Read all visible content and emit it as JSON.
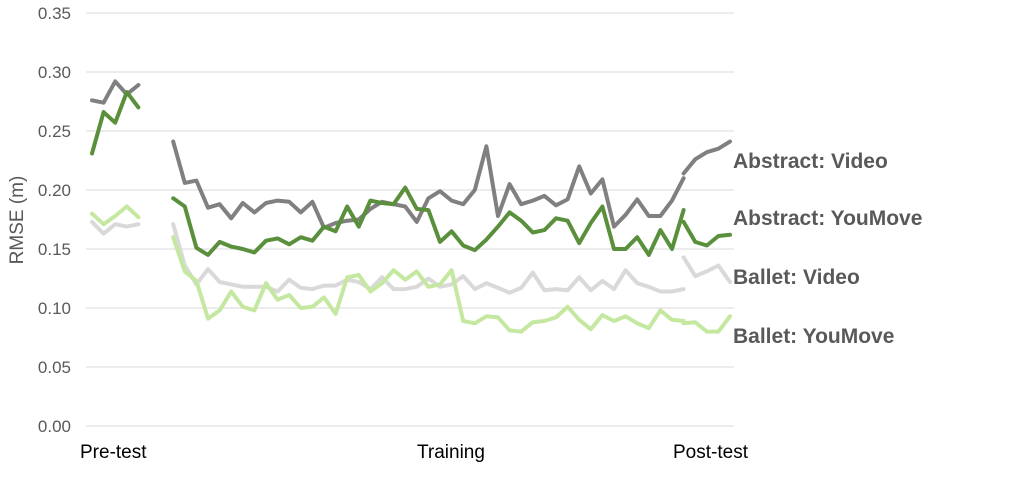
{
  "chart_data": {
    "type": "line",
    "title": "",
    "ylabel": "RMSE (m)",
    "xlabel": "",
    "ylim": [
      0,
      0.35
    ],
    "yticks": [
      "0.00",
      "0.05",
      "0.10",
      "0.15",
      "0.20",
      "0.25",
      "0.30",
      "0.35"
    ],
    "grid": true,
    "x_phase_labels": [
      "Pre-test",
      "Training",
      "Post-test"
    ],
    "phases": [
      {
        "name": "Pre-test",
        "start": 0,
        "count": 5
      },
      {
        "name": "Training",
        "start": 7,
        "count": 43
      },
      {
        "name": "Post-test",
        "start": 51,
        "count": 5
      }
    ],
    "series": [
      {
        "name": "Abstract: Video",
        "color": "#808080",
        "pre": [
          0.276,
          0.274,
          0.292,
          0.281,
          0.289
        ],
        "training": [
          0.241,
          0.206,
          0.208,
          0.185,
          0.188,
          0.176,
          0.189,
          0.181,
          0.189,
          0.191,
          0.19,
          0.181,
          0.19,
          0.168,
          0.172,
          0.174,
          0.175,
          0.184,
          0.19,
          0.188,
          0.186,
          0.173,
          0.193,
          0.199,
          0.191,
          0.188,
          0.2,
          0.237,
          0.178,
          0.205,
          0.188,
          0.191,
          0.195,
          0.187,
          0.192,
          0.22,
          0.197,
          0.209,
          0.169,
          0.179,
          0.192,
          0.178,
          0.178,
          0.191,
          0.21
        ],
        "post": [
          0.214,
          0.226,
          0.232,
          0.235,
          0.241
        ]
      },
      {
        "name": "Abstract: YouMove",
        "color": "#5a8f3c",
        "pre": [
          0.231,
          0.266,
          0.257,
          0.283,
          0.27
        ],
        "training": [
          0.193,
          0.186,
          0.151,
          0.145,
          0.156,
          0.152,
          0.15,
          0.147,
          0.157,
          0.159,
          0.154,
          0.16,
          0.157,
          0.169,
          0.165,
          0.186,
          0.169,
          0.191,
          0.189,
          0.188,
          0.202,
          0.184,
          0.183,
          0.156,
          0.165,
          0.153,
          0.149,
          0.158,
          0.169,
          0.181,
          0.174,
          0.164,
          0.166,
          0.176,
          0.174,
          0.155,
          0.172,
          0.186,
          0.15,
          0.15,
          0.16,
          0.145,
          0.166,
          0.15,
          0.183
        ],
        "post": [
          0.173,
          0.156,
          0.153,
          0.161,
          0.162
        ]
      },
      {
        "name": "Ballet: Video",
        "color": "#d9d9d9",
        "pre": [
          0.173,
          0.163,
          0.171,
          0.169,
          0.171
        ],
        "training": [
          0.171,
          0.136,
          0.12,
          0.133,
          0.122,
          0.12,
          0.118,
          0.118,
          0.118,
          0.114,
          0.124,
          0.117,
          0.116,
          0.119,
          0.119,
          0.124,
          0.122,
          0.116,
          0.126,
          0.116,
          0.116,
          0.118,
          0.125,
          0.118,
          0.12,
          0.127,
          0.116,
          0.121,
          0.117,
          0.113,
          0.117,
          0.13,
          0.115,
          0.116,
          0.115,
          0.126,
          0.115,
          0.123,
          0.116,
          0.132,
          0.121,
          0.118,
          0.114,
          0.114,
          0.116
        ],
        "post": [
          0.143,
          0.127,
          0.131,
          0.136,
          0.122
        ]
      },
      {
        "name": "Ballet: YouMove",
        "color": "#c5e8a0",
        "pre": [
          0.18,
          0.171,
          0.178,
          0.186,
          0.177
        ],
        "training": [
          0.16,
          0.131,
          0.123,
          0.091,
          0.098,
          0.114,
          0.101,
          0.098,
          0.121,
          0.107,
          0.111,
          0.1,
          0.101,
          0.109,
          0.095,
          0.126,
          0.128,
          0.114,
          0.121,
          0.132,
          0.124,
          0.131,
          0.118,
          0.12,
          0.132,
          0.089,
          0.087,
          0.093,
          0.092,
          0.081,
          0.08,
          0.088,
          0.089,
          0.092,
          0.101,
          0.09,
          0.082,
          0.094,
          0.089,
          0.093,
          0.087,
          0.083,
          0.098,
          0.09,
          0.089
        ],
        "post": [
          0.087,
          0.088,
          0.08,
          0.08,
          0.093
        ]
      }
    ]
  }
}
